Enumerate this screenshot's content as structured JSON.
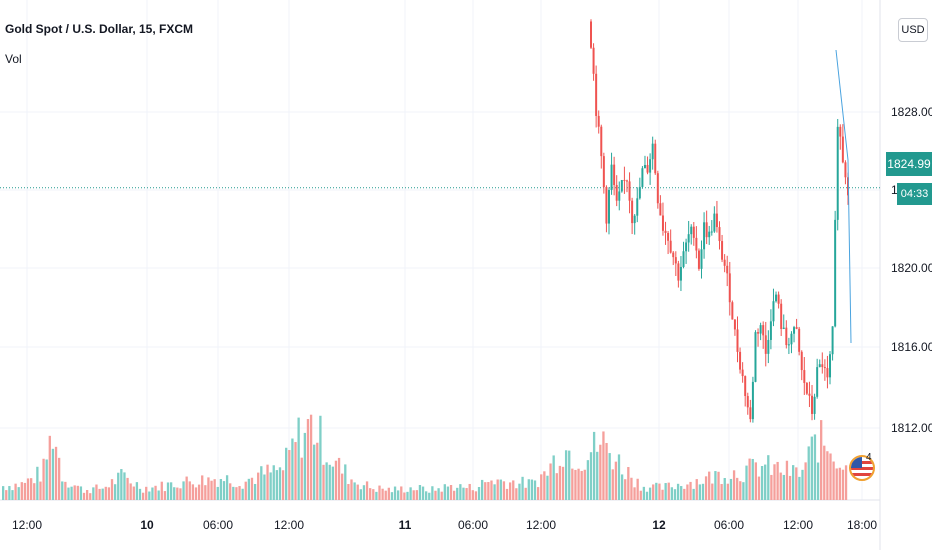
{
  "header": {
    "title": "Gold Spot / U.S. Dollar, 15, FXCM",
    "indicator": "Vol"
  },
  "price_scale": {
    "currency": "USD",
    "currency_prefix": "1",
    "last_price": "1824.99",
    "countdown": "04:33"
  },
  "events": {
    "count": "4",
    "icon": "us-flag-icon"
  },
  "colors": {
    "up": "#26a69a",
    "down": "#ef5350",
    "up_volume": "#7fcfc7",
    "down_volume": "#f59f9b",
    "last_price": "#22998f",
    "grid": "#f0f3fa",
    "indicator_line": "#4aa3df"
  },
  "chart_data": {
    "type": "candlestick",
    "symbol": "XAUUSD",
    "timeframe": "15",
    "y_ticks": [
      1828,
      1824,
      1820,
      1816,
      1812
    ],
    "y_tick_labels": [
      "1828.00",
      "1824",
      "1820.00",
      "1816.00",
      "1812.00"
    ],
    "x_ticks": [
      {
        "label": "12:00",
        "major": false
      },
      {
        "label": "10",
        "major": true
      },
      {
        "label": "06:00",
        "major": false
      },
      {
        "label": "12:00",
        "major": false
      },
      {
        "label": "11",
        "major": true
      },
      {
        "label": "06:00",
        "major": false
      },
      {
        "label": "12:00",
        "major": false
      },
      {
        "label": "12",
        "major": true
      },
      {
        "label": "06:00",
        "major": false
      },
      {
        "label": "12:00",
        "major": false
      },
      {
        "label": "18:00",
        "major": false
      }
    ],
    "ylim": [
      1809,
      1834.6
    ],
    "last_price": 1824.99,
    "grid": true,
    "candle_anchors": [
      [
        0,
        1832.5
      ],
      [
        2,
        1829.0
      ],
      [
        4,
        1826.5
      ],
      [
        6,
        1823.5
      ],
      [
        8,
        1826.0
      ],
      [
        10,
        1824.0
      ],
      [
        12,
        1825.0
      ],
      [
        14,
        1825.5
      ],
      [
        16,
        1823.5
      ],
      [
        18,
        1824.2
      ],
      [
        20,
        1825.8
      ],
      [
        22,
        1826.0
      ],
      [
        24,
        1827.2
      ],
      [
        26,
        1824.5
      ],
      [
        28,
        1823.0
      ],
      [
        30,
        1822.5
      ],
      [
        32,
        1821.5
      ],
      [
        34,
        1820.5
      ],
      [
        36,
        1821.5
      ],
      [
        38,
        1822.5
      ],
      [
        40,
        1822.8
      ],
      [
        42,
        1821.0
      ],
      [
        44,
        1823.0
      ],
      [
        46,
        1822.5
      ],
      [
        48,
        1823.5
      ],
      [
        50,
        1822.0
      ],
      [
        52,
        1821.0
      ],
      [
        54,
        1819.5
      ],
      [
        56,
        1817.5
      ],
      [
        58,
        1816.0
      ],
      [
        60,
        1814.5
      ],
      [
        62,
        1813.0
      ],
      [
        64,
        1817.5
      ],
      [
        66,
        1818.0
      ],
      [
        68,
        1816.5
      ],
      [
        70,
        1818.5
      ],
      [
        72,
        1819.5
      ],
      [
        74,
        1818.0
      ],
      [
        76,
        1817.0
      ],
      [
        78,
        1817.5
      ],
      [
        80,
        1817.5
      ],
      [
        82,
        1815.5
      ],
      [
        84,
        1814.5
      ],
      [
        86,
        1813.5
      ],
      [
        88,
        1815.5
      ],
      [
        90,
        1816.0
      ],
      [
        92,
        1815.0
      ],
      [
        94,
        1817.5
      ],
      [
        96,
        1828.5
      ],
      [
        98,
        1826.5
      ],
      [
        100,
        1824.99
      ]
    ],
    "candle_count": 101,
    "volume_anchors": [
      [
        0,
        14
      ],
      [
        20,
        16
      ],
      [
        40,
        28
      ],
      [
        50,
        70
      ],
      [
        60,
        22
      ],
      [
        80,
        10
      ],
      [
        100,
        12
      ],
      [
        120,
        24
      ],
      [
        140,
        12
      ],
      [
        160,
        14
      ],
      [
        180,
        18
      ],
      [
        200,
        20
      ],
      [
        220,
        22
      ],
      [
        240,
        18
      ],
      [
        260,
        26
      ],
      [
        280,
        30
      ],
      [
        295,
        62
      ],
      [
        310,
        76
      ],
      [
        330,
        40
      ],
      [
        350,
        20
      ],
      [
        370,
        12
      ],
      [
        390,
        10
      ],
      [
        410,
        12
      ],
      [
        430,
        10
      ],
      [
        450,
        14
      ],
      [
        470,
        12
      ],
      [
        490,
        20
      ],
      [
        510,
        18
      ],
      [
        530,
        16
      ],
      [
        545,
        28
      ],
      [
        560,
        52
      ],
      [
        580,
        42
      ],
      [
        600,
        58
      ],
      [
        620,
        34
      ],
      [
        640,
        14
      ],
      [
        660,
        12
      ],
      [
        680,
        16
      ],
      [
        700,
        20
      ],
      [
        720,
        26
      ],
      [
        740,
        28
      ],
      [
        760,
        34
      ],
      [
        780,
        30
      ],
      [
        800,
        26
      ],
      [
        815,
        60
      ],
      [
        830,
        52
      ],
      [
        845,
        30
      ]
    ],
    "volume_range": [
      0,
      100
    ],
    "volume_bar_count": 272
  }
}
